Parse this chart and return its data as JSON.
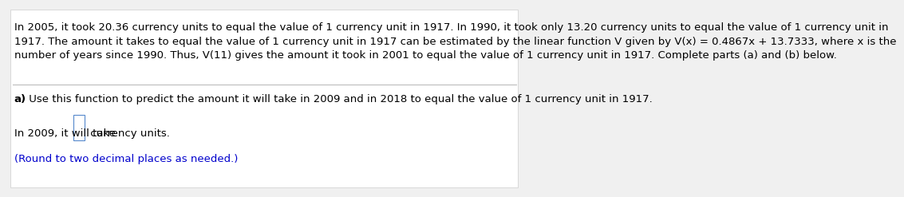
{
  "bg_color": "#f0f0f0",
  "panel_color": "#ffffff",
  "text_color": "#000000",
  "blue_color": "#0000cc",
  "line_color": "#cccccc",
  "paragraph_text": "In 2005, it took 20.36 currency units to equal the value of 1 currency unit in 1917. In 1990, it took only 13.20 currency units to equal the value of 1 currency unit in\n1917. The amount it takes to equal the value of 1 currency unit in 1917 can be estimated by the linear function V given by V(x) = 0.4867x + 13.7333, where x is the\nnumber of years since 1990. Thus, V(11) gives the amount it took in 2001 to equal the value of 1 currency unit in 1917. Complete parts (a) and (b) below.",
  "part_a_label": "a)",
  "part_a_text": " Use this function to predict the amount it will take in 2009 and in 2018 to equal the value of 1 currency unit in 1917.",
  "answer_line1_pre": "In 2009, it will take ",
  "answer_line1_post": " currency units.",
  "round_note": "(Round to two decimal places as needed.)",
  "font_size": 9.5,
  "fig_width": 9.9,
  "fig_height": 2.27
}
